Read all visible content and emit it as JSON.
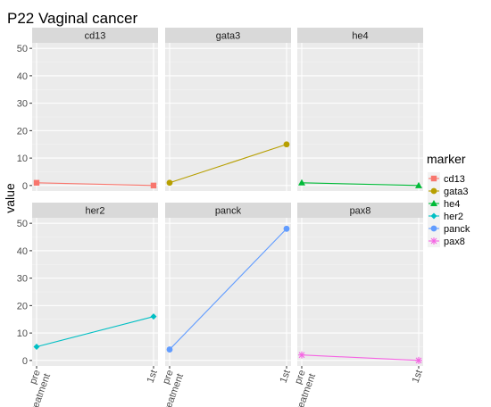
{
  "chart_data": {
    "type": "line",
    "title": "P22  Vaginal cancer",
    "xlabel": "",
    "ylabel": "value",
    "categories": [
      "pre treatment",
      "1st"
    ],
    "category_labels": [
      [
        "pre",
        "treatment"
      ],
      [
        "1st"
      ]
    ],
    "ylim": [
      -2,
      52
    ],
    "yticks": [
      0,
      10,
      20,
      30,
      40,
      50
    ],
    "grid": true,
    "legend_title": "marker",
    "legend_position": "right",
    "facets": [
      "cd13",
      "gata3",
      "he4",
      "her2",
      "panck",
      "pax8"
    ],
    "series": [
      {
        "name": "cd13",
        "values": [
          1.0,
          0.0
        ],
        "color": "#F8766D",
        "shape": "square"
      },
      {
        "name": "gata3",
        "values": [
          1.0,
          15.0
        ],
        "color": "#B79F00",
        "shape": "circle"
      },
      {
        "name": "he4",
        "values": [
          1.0,
          0.0
        ],
        "color": "#00BA38",
        "shape": "triangle"
      },
      {
        "name": "her2",
        "values": [
          5.0,
          16.0
        ],
        "color": "#00BFC4",
        "shape": "diamond"
      },
      {
        "name": "panck",
        "values": [
          4.0,
          48.0
        ],
        "color": "#619CFF",
        "shape": "circle"
      },
      {
        "name": "pax8",
        "values": [
          2.0,
          0.0
        ],
        "color": "#F564E3",
        "shape": "asterisk"
      }
    ]
  }
}
